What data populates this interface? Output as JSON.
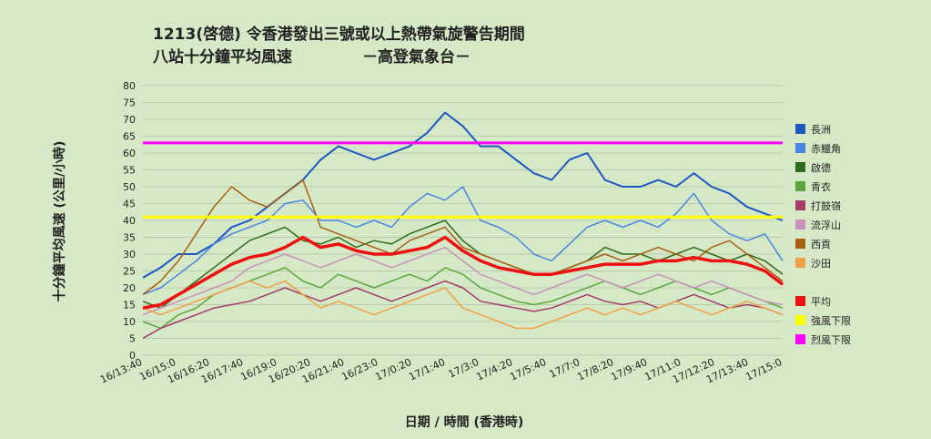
{
  "title_line1": "1213(啓德)  令香港發出三號或以上熱帶氣旋警告期間",
  "title_line2": "八站十分鐘平均風速",
  "title_source": "－高登氣象台－",
  "chart_data": {
    "type": "line",
    "xlabel": "日期 / 時間 (香港時)",
    "ylabel": "十分鐘平均風速 (公里/小時)",
    "ylim": [
      0,
      80
    ],
    "yticks": [
      0,
      5,
      10,
      15,
      20,
      25,
      30,
      35,
      40,
      45,
      50,
      55,
      60,
      65,
      70,
      75,
      80
    ],
    "grid": true,
    "legend_position": "right",
    "x_tick_labels": [
      "16/13:40",
      "16/15:0",
      "16/16:20",
      "16/17:40",
      "16/19:0",
      "16/20:20",
      "16/21:40",
      "16/23:0",
      "17/0:20",
      "17/1:40",
      "17/3:0",
      "17/4:20",
      "17/5:40",
      "17/7:0",
      "17/8:20",
      "17/9:40",
      "17/11:0",
      "17/12:20",
      "17/13:40",
      "17/15:0"
    ],
    "series": [
      {
        "name": "長洲",
        "color": "#1c57c2",
        "width": 2,
        "values": [
          23,
          26,
          30,
          30,
          33,
          38,
          40,
          44,
          48,
          52,
          58,
          62,
          60,
          58,
          60,
          62,
          66,
          72,
          68,
          62,
          62,
          58,
          54,
          52,
          58,
          60,
          52,
          50,
          50,
          52,
          50,
          54,
          50,
          48,
          44,
          42,
          40
        ]
      },
      {
        "name": "赤鱲角",
        "color": "#4a86e0",
        "width": 1.5,
        "values": [
          18,
          20,
          24,
          28,
          33,
          36,
          38,
          40,
          45,
          46,
          40,
          40,
          38,
          40,
          38,
          44,
          48,
          46,
          50,
          40,
          38,
          35,
          30,
          28,
          33,
          38,
          40,
          38,
          40,
          38,
          42,
          48,
          40,
          36,
          34,
          36,
          28
        ]
      },
      {
        "name": "啟德",
        "color": "#2f6b1c",
        "width": 1.5,
        "values": [
          16,
          14,
          18,
          22,
          26,
          30,
          34,
          36,
          38,
          34,
          33,
          35,
          32,
          34,
          33,
          36,
          38,
          40,
          34,
          30,
          28,
          26,
          24,
          24,
          26,
          28,
          32,
          30,
          30,
          28,
          30,
          32,
          30,
          28,
          30,
          28,
          24
        ]
      },
      {
        "name": "青衣",
        "color": "#5aa63c",
        "width": 1.5,
        "values": [
          10,
          8,
          12,
          14,
          18,
          20,
          22,
          24,
          26,
          22,
          20,
          24,
          22,
          20,
          22,
          24,
          22,
          26,
          24,
          20,
          18,
          16,
          15,
          16,
          18,
          20,
          22,
          20,
          18,
          20,
          22,
          20,
          18,
          20,
          18,
          16,
          14
        ]
      },
      {
        "name": "打鼓嶺",
        "color": "#a23a6a",
        "width": 1.5,
        "values": [
          5,
          8,
          10,
          12,
          14,
          15,
          16,
          18,
          20,
          18,
          16,
          18,
          20,
          18,
          16,
          18,
          20,
          22,
          20,
          16,
          15,
          14,
          13,
          14,
          16,
          18,
          16,
          15,
          16,
          14,
          16,
          18,
          16,
          14,
          15,
          14,
          12
        ]
      },
      {
        "name": "流浮山",
        "color": "#c990bd",
        "width": 1.5,
        "values": [
          12,
          14,
          16,
          18,
          20,
          22,
          26,
          28,
          30,
          28,
          26,
          28,
          30,
          28,
          26,
          28,
          30,
          32,
          28,
          24,
          22,
          20,
          18,
          20,
          22,
          24,
          22,
          20,
          22,
          24,
          22,
          20,
          22,
          20,
          18,
          16,
          15
        ]
      },
      {
        "name": "西貢",
        "color": "#a85f14",
        "width": 1.5,
        "values": [
          18,
          22,
          28,
          36,
          44,
          50,
          46,
          44,
          48,
          52,
          38,
          36,
          34,
          32,
          30,
          34,
          36,
          38,
          32,
          30,
          28,
          26,
          24,
          24,
          26,
          28,
          30,
          28,
          30,
          32,
          30,
          28,
          32,
          34,
          30,
          26,
          22
        ]
      },
      {
        "name": "沙田",
        "color": "#f0a048",
        "width": 1.5,
        "values": [
          14,
          12,
          14,
          16,
          18,
          20,
          22,
          20,
          22,
          18,
          14,
          16,
          14,
          12,
          14,
          16,
          18,
          20,
          14,
          12,
          10,
          8,
          8,
          10,
          12,
          14,
          12,
          14,
          12,
          14,
          16,
          14,
          12,
          14,
          16,
          14,
          12
        ]
      },
      {
        "name": "平均",
        "color": "#ee1111",
        "width": 3.5,
        "values": [
          14,
          15,
          18,
          21,
          24,
          27,
          29,
          30,
          32,
          35,
          32,
          33,
          31,
          30,
          30,
          31,
          32,
          35,
          31,
          28,
          26,
          25,
          24,
          24,
          25,
          26,
          27,
          27,
          27,
          28,
          28,
          29,
          28,
          28,
          27,
          25,
          21
        ]
      },
      {
        "name": "強風下限",
        "color": "#ffff00",
        "width": 3,
        "values": [
          41,
          41
        ]
      },
      {
        "name": "烈風下限",
        "color": "#ff00ff",
        "width": 3,
        "values": [
          63,
          63
        ]
      }
    ]
  }
}
